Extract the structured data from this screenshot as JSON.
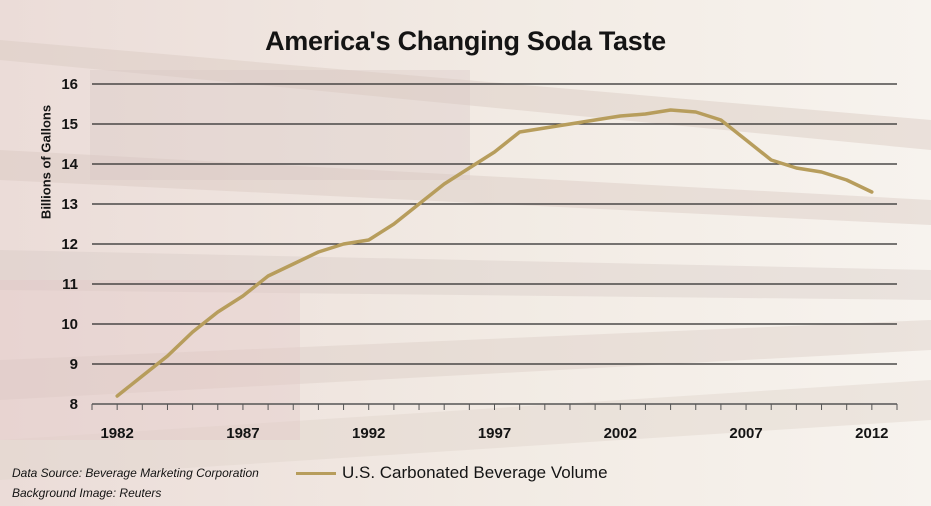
{
  "title": "America's Changing Soda Taste",
  "source_line_1": "Data Source: Beverage Marketing Corporation",
  "source_line_2": "Background Image: Reuters",
  "colors": {
    "line": "#b79d5c",
    "grid": "#2a2a2a",
    "text": "#141414"
  },
  "chart_data": {
    "type": "line",
    "title": "America's Changing Soda Taste",
    "xlabel": "",
    "ylabel": "Billions of Gallons",
    "xlim": [
      1981,
      2013
    ],
    "ylim": [
      8,
      16
    ],
    "x_ticks": [
      1982,
      1987,
      1992,
      1997,
      2002,
      2007,
      2012
    ],
    "y_ticks": [
      8,
      9,
      10,
      11,
      12,
      13,
      14,
      15,
      16
    ],
    "grid": "horizontal",
    "legend_position": "bottom",
    "series": [
      {
        "name": "U.S. Carbonated Beverage Volume",
        "x": [
          1982,
          1983,
          1984,
          1985,
          1986,
          1987,
          1988,
          1989,
          1990,
          1991,
          1992,
          1993,
          1994,
          1995,
          1996,
          1997,
          1998,
          1999,
          2000,
          2001,
          2002,
          2003,
          2004,
          2005,
          2006,
          2007,
          2008,
          2009,
          2010,
          2011,
          2012
        ],
        "values": [
          8.2,
          8.7,
          9.2,
          9.8,
          10.3,
          10.7,
          11.2,
          11.5,
          11.8,
          12.0,
          12.1,
          12.5,
          13.0,
          13.5,
          13.9,
          14.3,
          14.8,
          14.9,
          15.0,
          15.1,
          15.2,
          15.25,
          15.35,
          15.3,
          15.1,
          14.6,
          14.1,
          13.9,
          13.8,
          13.6,
          13.3
        ]
      }
    ]
  }
}
